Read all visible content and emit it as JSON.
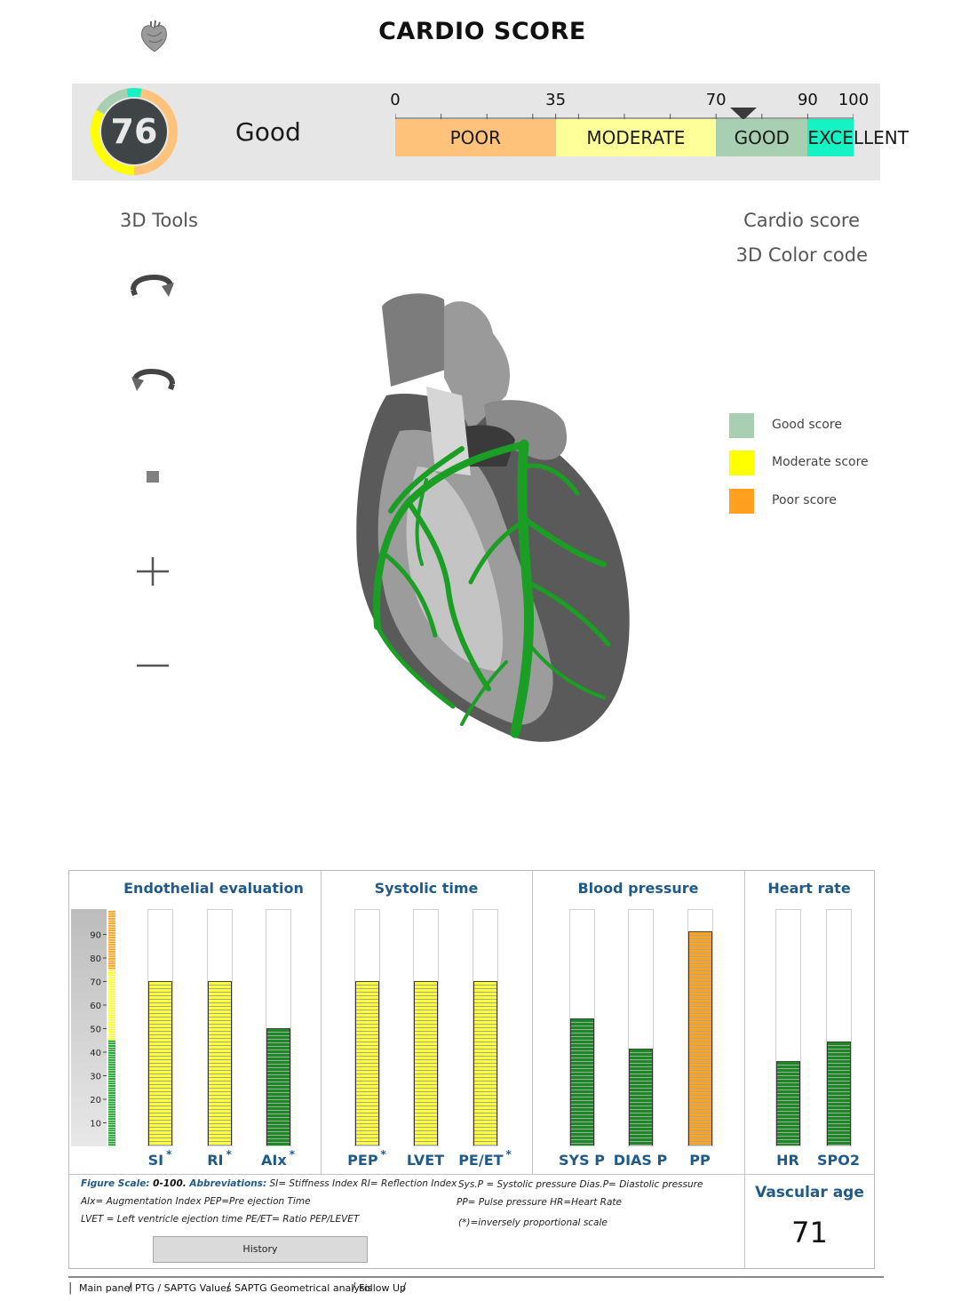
{
  "header": {
    "title": "CARDIO SCORE",
    "app_icon": "heart-icon"
  },
  "score": {
    "value": "76",
    "label": "Good",
    "gauge_fraction": 0.76,
    "marker_value": 76,
    "scale_ticks": [
      "0",
      "35",
      "70",
      "90",
      "100"
    ],
    "segments": [
      {
        "label": "POOR",
        "from": 0,
        "to": 35,
        "color": "#fec27b"
      },
      {
        "label": "MODERATE",
        "from": 35,
        "to": 70,
        "color": "#ffff99"
      },
      {
        "label": "GOOD",
        "from": 70,
        "to": 90,
        "color": "#a9cfb3"
      },
      {
        "label": "EXCELLENT",
        "from": 90,
        "to": 100,
        "color": "#15f2c4"
      }
    ]
  },
  "tools": {
    "title": "3D Tools",
    "items": [
      "rotate-right-icon",
      "rotate-left-icon",
      "stop-icon",
      "zoom-in-icon",
      "zoom-out-icon"
    ]
  },
  "legend": {
    "title_line1": "Cardio score",
    "title_line2": "3D Color code",
    "items": [
      {
        "label": "Good score",
        "color": "#a9cfb3"
      },
      {
        "label": "Moderate score",
        "color": "#ffff00"
      },
      {
        "label": "Poor score",
        "color": "#ffa020"
      }
    ]
  },
  "colors": {
    "yellow": "#ffff33",
    "green": "#1a8a22",
    "orange": "#ffa21c",
    "title_blue": "#1f5a8a"
  },
  "chart_data": {
    "type": "bar",
    "ylim": [
      0,
      100
    ],
    "yticks": [
      "10",
      "20",
      "30",
      "40",
      "50",
      "60",
      "70",
      "80",
      "90"
    ],
    "groups": [
      {
        "title": "Endothelial evaluation",
        "bars": [
          {
            "label": "SI",
            "star": "*",
            "value": 70,
            "color": "yellow"
          },
          {
            "label": "RI",
            "star": "*",
            "value": 70,
            "color": "yellow"
          },
          {
            "label": "AIx",
            "star": "*",
            "value": 50,
            "color": "green"
          }
        ]
      },
      {
        "title": "Systolic time",
        "bars": [
          {
            "label": "PEP",
            "star": "*",
            "value": 70,
            "color": "yellow"
          },
          {
            "label": "LVET",
            "star": "",
            "value": 70,
            "color": "yellow"
          },
          {
            "label": "PE/ET",
            "star": "*",
            "value": 70,
            "color": "yellow"
          }
        ]
      },
      {
        "title": "Blood pressure",
        "bars": [
          {
            "label": "SYS P",
            "star": "",
            "value": 54,
            "color": "green"
          },
          {
            "label": "DIAS P",
            "star": "",
            "value": 41,
            "color": "green"
          },
          {
            "label": "PP",
            "star": "",
            "value": 91,
            "color": "orange"
          }
        ]
      },
      {
        "title": "Heart rate",
        "bars": [
          {
            "label": "HR",
            "star": "",
            "value": 36,
            "color": "green"
          },
          {
            "label": "SPO2",
            "star": "",
            "value": 44,
            "color": "green"
          }
        ]
      }
    ]
  },
  "notes": {
    "scale_label": "Figure Scale:",
    "scale_value": " 0-100.",
    "abbr_label": " Abbreviations:",
    "line1_rest": "  SI= Stiffness Index  RI= Reflection Index",
    "line2": "AIx= Augmentation Index PEP=Pre ejection Time",
    "line3": "LVET = Left ventricle ejection time PE/ET= Ratio PEP/LEVET",
    "right1": "Sys.P = Systolic pressure Dias.P= Diastolic pressure",
    "right2": "PP= Pulse pressure        HR=Heart Rate",
    "right3": "(*)=inversely proportional scale"
  },
  "history_button": "History",
  "vascular": {
    "title": "Vascular age",
    "value": "71"
  },
  "tabs": [
    "Main panel",
    "PTG / SAPTG Values",
    "SAPTG Geometrical analysis",
    "Follow Up"
  ]
}
